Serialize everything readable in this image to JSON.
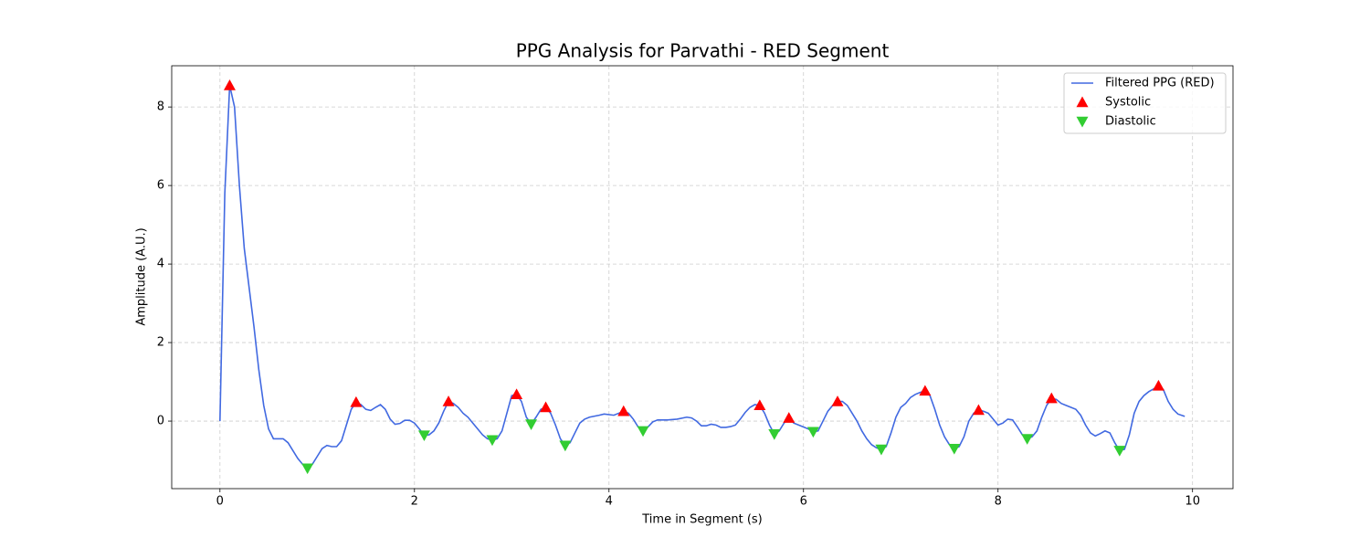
{
  "chart_data": {
    "type": "line",
    "title": "PPG Analysis for Parvathi - RED Segment",
    "xlabel": "Time in Segment (s)",
    "ylabel": "Amplitude (A.U.)",
    "xlim": [
      -0.496,
      10.416
    ],
    "ylim": [
      -1.72,
      9.05
    ],
    "xticks": [
      0,
      2,
      4,
      6,
      8,
      10
    ],
    "yticks": [
      0,
      2,
      4,
      6,
      8
    ],
    "grid": true,
    "legend": "upper right",
    "series": [
      {
        "name": "Filtered PPG (RED)",
        "type": "line",
        "color": "#4169e1",
        "x": [
          0,
          0.05,
          0.1,
          0.15,
          0.2,
          0.25,
          0.3,
          0.35,
          0.4,
          0.45,
          0.5,
          0.55,
          0.65,
          0.7,
          0.75,
          0.8,
          0.85,
          0.9,
          0.95,
          1.0,
          1.05,
          1.1,
          1.15,
          1.2,
          1.25,
          1.3,
          1.35,
          1.4,
          1.45,
          1.5,
          1.55,
          1.6,
          1.65,
          1.7,
          1.75,
          1.8,
          1.85,
          1.9,
          1.95,
          2.0,
          2.05,
          2.1,
          2.15,
          2.2,
          2.25,
          2.3,
          2.35,
          2.4,
          2.45,
          2.5,
          2.55,
          2.6,
          2.65,
          2.7,
          2.75,
          2.8,
          2.85,
          2.9,
          2.95,
          3.0,
          3.05,
          3.1,
          3.15,
          3.2,
          3.25,
          3.3,
          3.35,
          3.4,
          3.45,
          3.5,
          3.55,
          3.6,
          3.65,
          3.7,
          3.75,
          3.8,
          3.9,
          3.95,
          4.05,
          4.15,
          4.2,
          4.25,
          4.3,
          4.35,
          4.4,
          4.45,
          4.5,
          4.6,
          4.7,
          4.8,
          4.85,
          4.9,
          4.95,
          5.0,
          5.05,
          5.1,
          5.15,
          5.2,
          5.25,
          5.3,
          5.35,
          5.4,
          5.45,
          5.5,
          5.55,
          5.6,
          5.65,
          5.7,
          5.75,
          5.8,
          5.85,
          5.9,
          6.0,
          6.05,
          6.1,
          6.15,
          6.2,
          6.25,
          6.3,
          6.35,
          6.4,
          6.45,
          6.5,
          6.55,
          6.6,
          6.65,
          6.7,
          6.75,
          6.8,
          6.85,
          6.9,
          6.95,
          7.0,
          7.05,
          7.1,
          7.15,
          7.2,
          7.25,
          7.3,
          7.35,
          7.4,
          7.45,
          7.5,
          7.55,
          7.6,
          7.65,
          7.7,
          7.75,
          7.8,
          7.85,
          7.9,
          7.95,
          8.0,
          8.05,
          8.1,
          8.15,
          8.2,
          8.25,
          8.3,
          8.35,
          8.4,
          8.45,
          8.5,
          8.55,
          8.6,
          8.65,
          8.7,
          8.75,
          8.8,
          8.85,
          8.9,
          8.95,
          9.0,
          9.05,
          9.1,
          9.15,
          9.2,
          9.25,
          9.3,
          9.35,
          9.4,
          9.45,
          9.5,
          9.55,
          9.6,
          9.65,
          9.7,
          9.75,
          9.8,
          9.85,
          9.92
        ],
        "values": [
          0,
          5.8,
          8.55,
          8.0,
          6.0,
          4.4,
          3.4,
          2.4,
          1.3,
          0.4,
          -0.2,
          -0.45,
          -0.45,
          -0.55,
          -0.75,
          -0.95,
          -1.1,
          -1.2,
          -1.1,
          -0.9,
          -0.7,
          -0.62,
          -0.65,
          -0.65,
          -0.5,
          -0.1,
          0.3,
          0.48,
          0.42,
          0.3,
          0.27,
          0.35,
          0.42,
          0.3,
          0.05,
          -0.08,
          -0.06,
          0.02,
          0.02,
          -0.05,
          -0.2,
          -0.36,
          -0.35,
          -0.25,
          -0.05,
          0.25,
          0.5,
          0.45,
          0.35,
          0.2,
          0.1,
          -0.05,
          -0.2,
          -0.35,
          -0.45,
          -0.48,
          -0.45,
          -0.25,
          0.2,
          0.65,
          0.68,
          0.5,
          0.1,
          -0.08,
          0.1,
          0.3,
          0.35,
          0.2,
          -0.1,
          -0.45,
          -0.62,
          -0.55,
          -0.3,
          -0.05,
          0.05,
          0.1,
          0.15,
          0.18,
          0.15,
          0.25,
          0.2,
          0.05,
          -0.15,
          -0.25,
          -0.15,
          -0.02,
          0.03,
          0.03,
          0.05,
          0.1,
          0.08,
          0.0,
          -0.12,
          -0.12,
          -0.08,
          -0.1,
          -0.16,
          -0.16,
          -0.14,
          -0.1,
          0.05,
          0.22,
          0.35,
          0.42,
          0.4,
          0.2,
          -0.1,
          -0.33,
          -0.25,
          -0.05,
          0.08,
          -0.05,
          -0.15,
          -0.2,
          -0.27,
          -0.25,
          0.0,
          0.25,
          0.4,
          0.5,
          0.5,
          0.4,
          0.2,
          0.0,
          -0.25,
          -0.45,
          -0.6,
          -0.68,
          -0.72,
          -0.65,
          -0.3,
          0.1,
          0.35,
          0.45,
          0.6,
          0.68,
          0.73,
          0.77,
          0.65,
          0.3,
          -0.1,
          -0.4,
          -0.6,
          -0.7,
          -0.65,
          -0.4,
          0.0,
          0.2,
          0.28,
          0.25,
          0.2,
          0.05,
          -0.1,
          -0.05,
          0.05,
          0.03,
          -0.15,
          -0.35,
          -0.45,
          -0.4,
          -0.25,
          0.1,
          0.4,
          0.58,
          0.55,
          0.45,
          0.4,
          0.35,
          0.3,
          0.15,
          -0.1,
          -0.3,
          -0.38,
          -0.32,
          -0.25,
          -0.3,
          -0.55,
          -0.75,
          -0.72,
          -0.35,
          0.2,
          0.5,
          0.65,
          0.75,
          0.82,
          0.9,
          0.8,
          0.5,
          0.3,
          0.18,
          0.12
        ]
      },
      {
        "name": "Systolic",
        "type": "scatter",
        "marker": "triangle-up",
        "color": "#ff0000",
        "x": [
          0.1,
          1.4,
          2.35,
          3.05,
          3.35,
          4.15,
          5.55,
          5.85,
          6.35,
          7.25,
          7.8,
          8.55,
          9.65
        ],
        "values": [
          8.55,
          0.48,
          0.5,
          0.68,
          0.35,
          0.25,
          0.4,
          0.08,
          0.5,
          0.77,
          0.28,
          0.58,
          0.9
        ]
      },
      {
        "name": "Diastolic",
        "type": "scatter",
        "marker": "triangle-down",
        "color": "#32cd32",
        "x": [
          0.9,
          2.1,
          2.8,
          3.2,
          3.55,
          4.35,
          5.7,
          6.1,
          6.8,
          7.55,
          8.3,
          9.25
        ],
        "values": [
          -1.2,
          -0.36,
          -0.48,
          -0.08,
          -0.62,
          -0.25,
          -0.33,
          -0.27,
          -0.72,
          -0.7,
          -0.45,
          -0.75
        ]
      }
    ]
  }
}
